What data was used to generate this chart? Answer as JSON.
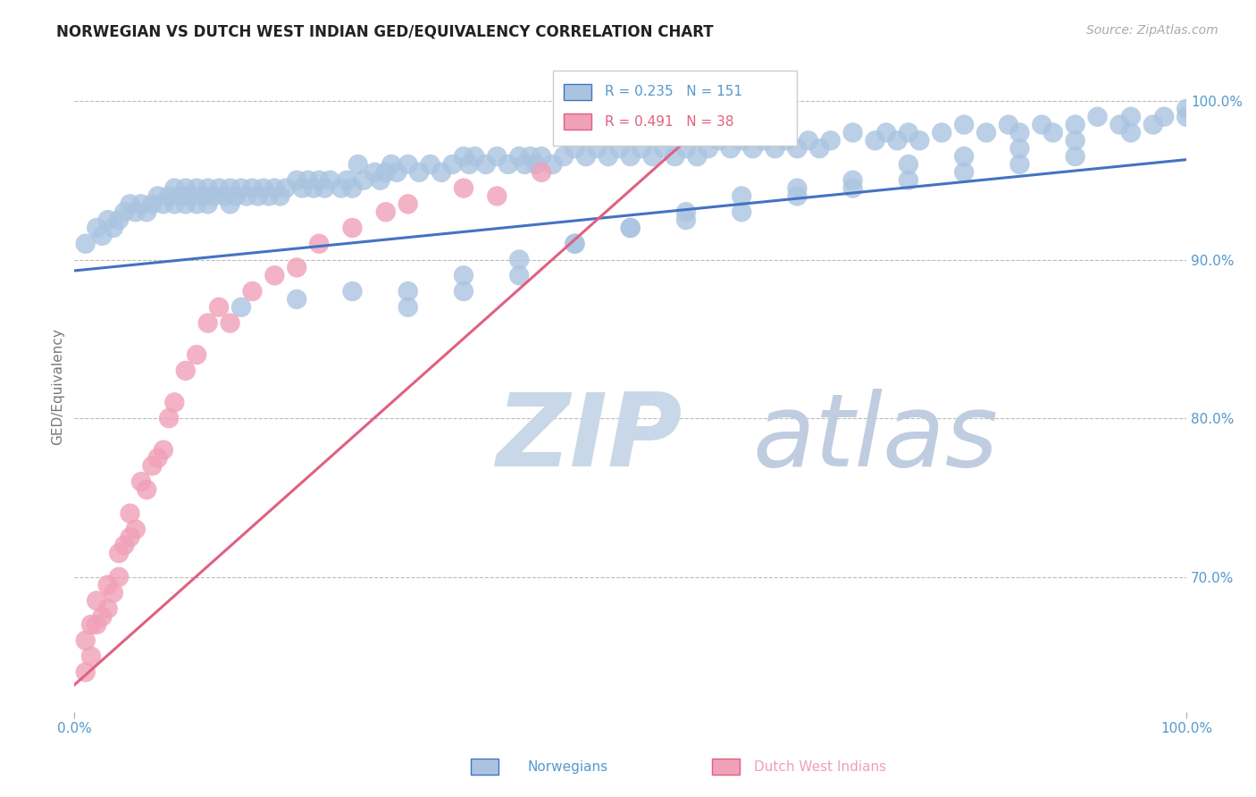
{
  "title": "NORWEGIAN VS DUTCH WEST INDIAN GED/EQUIVALENCY CORRELATION CHART",
  "source_text": "Source: ZipAtlas.com",
  "ylabel": "GED/Equivalency",
  "y_tick_labels_right": [
    "70.0%",
    "80.0%",
    "90.0%",
    "100.0%"
  ],
  "y_tick_values_right": [
    0.7,
    0.8,
    0.9,
    1.0
  ],
  "x_min": 0.0,
  "x_max": 1.0,
  "y_min": 0.615,
  "y_max": 1.025,
  "legend_r1": "R = 0.235",
  "legend_n1": "N = 151",
  "legend_r2": "R = 0.491",
  "legend_n2": "N = 38",
  "color_norwegian": "#aac4e0",
  "color_dutch": "#f0a0b8",
  "color_trend_norwegian": "#4472c4",
  "color_trend_dutch": "#e06080",
  "watermark_zip": "ZIP",
  "watermark_atlas": "atlas",
  "watermark_color_zip": "#c8d8e8",
  "watermark_color_atlas": "#c0cce0",
  "background_color": "#ffffff",
  "grid_color": "#bbbbbb",
  "axis_label_color": "#5599cc",
  "title_fontsize": 12,
  "axis_tick_fontsize": 11,
  "legend_fontsize": 11,
  "norwegians_x": [
    0.01,
    0.02,
    0.025,
    0.03,
    0.035,
    0.04,
    0.045,
    0.05,
    0.055,
    0.06,
    0.065,
    0.07,
    0.075,
    0.08,
    0.085,
    0.09,
    0.09,
    0.095,
    0.1,
    0.1,
    0.1,
    0.105,
    0.11,
    0.11,
    0.115,
    0.12,
    0.12,
    0.125,
    0.13,
    0.135,
    0.14,
    0.14,
    0.145,
    0.15,
    0.155,
    0.16,
    0.165,
    0.17,
    0.175,
    0.18,
    0.185,
    0.19,
    0.2,
    0.205,
    0.21,
    0.215,
    0.22,
    0.225,
    0.23,
    0.24,
    0.245,
    0.25,
    0.255,
    0.26,
    0.27,
    0.275,
    0.28,
    0.285,
    0.29,
    0.3,
    0.31,
    0.32,
    0.33,
    0.34,
    0.35,
    0.355,
    0.36,
    0.37,
    0.38,
    0.39,
    0.4,
    0.405,
    0.41,
    0.415,
    0.42,
    0.43,
    0.44,
    0.45,
    0.46,
    0.47,
    0.48,
    0.49,
    0.5,
    0.51,
    0.52,
    0.53,
    0.54,
    0.55,
    0.56,
    0.57,
    0.58,
    0.59,
    0.6,
    0.61,
    0.62,
    0.63,
    0.64,
    0.65,
    0.66,
    0.67,
    0.68,
    0.7,
    0.72,
    0.73,
    0.74,
    0.75,
    0.76,
    0.78,
    0.8,
    0.82,
    0.84,
    0.85,
    0.87,
    0.88,
    0.9,
    0.92,
    0.94,
    0.95,
    0.97,
    0.98,
    1.0,
    0.3,
    0.35,
    0.4,
    0.45,
    0.5,
    0.55,
    0.6,
    0.65,
    0.7,
    0.75,
    0.8,
    0.85,
    0.9,
    0.95,
    1.0,
    0.15,
    0.2,
    0.25,
    0.3,
    0.35,
    0.4,
    0.45,
    0.5,
    0.55,
    0.6,
    0.65,
    0.7,
    0.75,
    0.8,
    0.85,
    0.9
  ],
  "norwegians_y": [
    0.91,
    0.92,
    0.915,
    0.925,
    0.92,
    0.925,
    0.93,
    0.935,
    0.93,
    0.935,
    0.93,
    0.935,
    0.94,
    0.935,
    0.94,
    0.935,
    0.945,
    0.94,
    0.935,
    0.94,
    0.945,
    0.94,
    0.935,
    0.945,
    0.94,
    0.935,
    0.945,
    0.94,
    0.945,
    0.94,
    0.935,
    0.945,
    0.94,
    0.945,
    0.94,
    0.945,
    0.94,
    0.945,
    0.94,
    0.945,
    0.94,
    0.945,
    0.95,
    0.945,
    0.95,
    0.945,
    0.95,
    0.945,
    0.95,
    0.945,
    0.95,
    0.945,
    0.96,
    0.95,
    0.955,
    0.95,
    0.955,
    0.96,
    0.955,
    0.96,
    0.955,
    0.96,
    0.955,
    0.96,
    0.965,
    0.96,
    0.965,
    0.96,
    0.965,
    0.96,
    0.965,
    0.96,
    0.965,
    0.96,
    0.965,
    0.96,
    0.965,
    0.97,
    0.965,
    0.97,
    0.965,
    0.97,
    0.965,
    0.97,
    0.965,
    0.97,
    0.965,
    0.97,
    0.965,
    0.97,
    0.975,
    0.97,
    0.975,
    0.97,
    0.975,
    0.97,
    0.975,
    0.97,
    0.975,
    0.97,
    0.975,
    0.98,
    0.975,
    0.98,
    0.975,
    0.98,
    0.975,
    0.98,
    0.985,
    0.98,
    0.985,
    0.98,
    0.985,
    0.98,
    0.985,
    0.99,
    0.985,
    0.99,
    0.985,
    0.99,
    0.995,
    0.87,
    0.88,
    0.89,
    0.91,
    0.92,
    0.93,
    0.94,
    0.945,
    0.95,
    0.96,
    0.965,
    0.97,
    0.975,
    0.98,
    0.99,
    0.87,
    0.875,
    0.88,
    0.88,
    0.89,
    0.9,
    0.91,
    0.92,
    0.925,
    0.93,
    0.94,
    0.945,
    0.95,
    0.955,
    0.96,
    0.965
  ],
  "dutch_x": [
    0.01,
    0.01,
    0.015,
    0.015,
    0.02,
    0.02,
    0.025,
    0.03,
    0.03,
    0.035,
    0.04,
    0.04,
    0.045,
    0.05,
    0.05,
    0.055,
    0.06,
    0.065,
    0.07,
    0.075,
    0.08,
    0.085,
    0.09,
    0.1,
    0.11,
    0.12,
    0.13,
    0.14,
    0.16,
    0.18,
    0.2,
    0.22,
    0.25,
    0.28,
    0.3,
    0.35,
    0.38,
    0.42
  ],
  "dutch_y": [
    0.64,
    0.66,
    0.65,
    0.67,
    0.67,
    0.685,
    0.675,
    0.68,
    0.695,
    0.69,
    0.7,
    0.715,
    0.72,
    0.725,
    0.74,
    0.73,
    0.76,
    0.755,
    0.77,
    0.775,
    0.78,
    0.8,
    0.81,
    0.83,
    0.84,
    0.86,
    0.87,
    0.86,
    0.88,
    0.89,
    0.895,
    0.91,
    0.92,
    0.93,
    0.935,
    0.945,
    0.94,
    0.955
  ],
  "norw_trend_x0": 0.0,
  "norw_trend_y0": 0.893,
  "norw_trend_x1": 1.0,
  "norw_trend_y1": 0.963,
  "dutch_trend_x0": 0.0,
  "dutch_trend_y0": 0.632,
  "dutch_trend_x1": 0.55,
  "dutch_trend_y1": 0.975
}
